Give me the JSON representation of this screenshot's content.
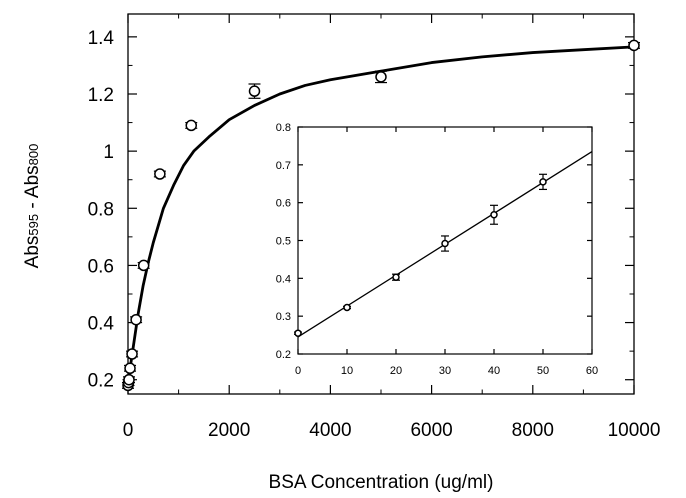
{
  "chart_data": [
    {
      "type": "scatter",
      "title": "",
      "xlabel": "BSA Concentration (ug/ml)",
      "ylabel_parts": [
        "Abs",
        "595",
        " - Abs",
        "800"
      ],
      "xlim": [
        0,
        10000
      ],
      "ylim": [
        0.15,
        1.48
      ],
      "x_ticks": [
        0,
        2000,
        4000,
        6000,
        8000,
        10000
      ],
      "y_ticks": [
        0.2,
        0.4,
        0.6,
        0.8,
        1,
        1.2,
        1.4
      ],
      "grid": false,
      "series": [
        {
          "points": [
            {
              "x": 0,
              "y": 0.18,
              "err": 0.01
            },
            {
              "x": 10,
              "y": 0.19,
              "err": 0.01
            },
            {
              "x": 20,
              "y": 0.2,
              "err": 0.01
            },
            {
              "x": 40,
              "y": 0.24,
              "err": 0.01
            },
            {
              "x": 80,
              "y": 0.29,
              "err": 0.01
            },
            {
              "x": 160,
              "y": 0.41,
              "err": 0.01
            },
            {
              "x": 310,
              "y": 0.6,
              "err": 0.01
            },
            {
              "x": 630,
              "y": 0.92,
              "err": 0.01
            },
            {
              "x": 1250,
              "y": 1.09,
              "err": 0.01
            },
            {
              "x": 2500,
              "y": 1.21,
              "err": 0.025
            },
            {
              "x": 5000,
              "y": 1.26,
              "err": 0.02
            },
            {
              "x": 10000,
              "y": 1.37,
              "err": 0.01
            }
          ],
          "fit": {
            "model": "hyperbola",
            "x": [
              0,
              50,
              100,
              200,
              300,
              400,
              500,
              700,
              900,
              1100,
              1300,
              1600,
              2000,
              2500,
              3000,
              3500,
              4000,
              5000,
              6000,
              7000,
              8000,
              9000,
              10000
            ],
            "y": [
              0.18,
              0.25,
              0.31,
              0.43,
              0.53,
              0.61,
              0.68,
              0.8,
              0.88,
              0.95,
              1.0,
              1.05,
              1.11,
              1.16,
              1.2,
              1.23,
              1.25,
              1.28,
              1.31,
              1.33,
              1.345,
              1.355,
              1.365
            ]
          }
        }
      ]
    },
    {
      "type": "scatter",
      "inset": true,
      "xlabel": "",
      "ylabel": "",
      "xlim": [
        0,
        60
      ],
      "ylim": [
        0.2,
        0.8
      ],
      "x_ticks": [
        0,
        10,
        20,
        30,
        40,
        50,
        60
      ],
      "y_ticks": [
        0.2,
        0.3,
        0.4,
        0.5,
        0.6,
        0.7,
        0.8
      ],
      "grid": false,
      "series": [
        {
          "points": [
            {
              "x": 0,
              "y": 0.255,
              "err": 0.003
            },
            {
              "x": 10,
              "y": 0.323,
              "err": 0.003
            },
            {
              "x": 20,
              "y": 0.403,
              "err": 0.008
            },
            {
              "x": 30,
              "y": 0.492,
              "err": 0.02
            },
            {
              "x": 40,
              "y": 0.568,
              "err": 0.025
            },
            {
              "x": 50,
              "y": 0.655,
              "err": 0.02
            }
          ],
          "fit": {
            "model": "linear",
            "x": [
              0,
              60
            ],
            "y": [
              0.245,
              0.735
            ]
          }
        }
      ]
    }
  ]
}
